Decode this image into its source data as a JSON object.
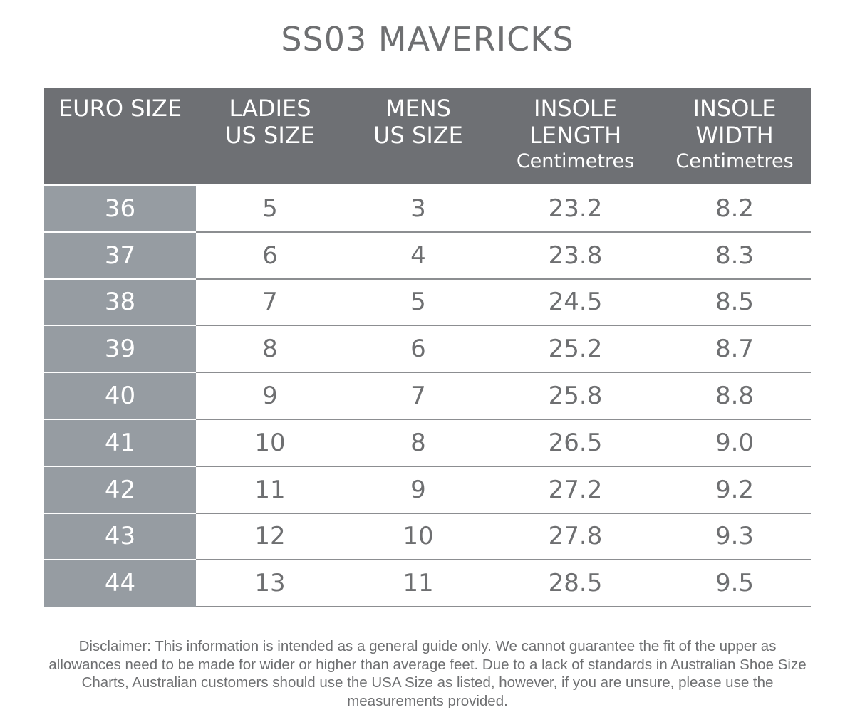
{
  "title": "SS03 MAVERICKS",
  "table": {
    "headers": [
      {
        "line1": "EURO SIZE",
        "line2": "",
        "sub": ""
      },
      {
        "line1": "LADIES",
        "line2": "US SIZE",
        "sub": ""
      },
      {
        "line1": "MENS",
        "line2": "US SIZE",
        "sub": ""
      },
      {
        "line1": "INSOLE",
        "line2": "LENGTH",
        "sub": "Centimetres"
      },
      {
        "line1": "INSOLE",
        "line2": "WIDTH",
        "sub": "Centimetres"
      }
    ],
    "rows": [
      [
        "36",
        "5",
        "3",
        "23.2",
        "8.2"
      ],
      [
        "37",
        "6",
        "4",
        "23.8",
        "8.3"
      ],
      [
        "38",
        "7",
        "5",
        "24.5",
        "8.5"
      ],
      [
        "39",
        "8",
        "6",
        "25.2",
        "8.7"
      ],
      [
        "40",
        "9",
        "7",
        "25.8",
        "8.8"
      ],
      [
        "41",
        "10",
        "8",
        "26.5",
        "9.0"
      ],
      [
        "42",
        "11",
        "9",
        "27.2",
        "9.2"
      ],
      [
        "43",
        "12",
        "10",
        "27.8",
        "9.3"
      ],
      [
        "44",
        "13",
        "11",
        "28.5",
        "9.5"
      ]
    ]
  },
  "disclaimer": "Disclaimer: This information is intended as a general guide only. We cannot guarantee the fit of the upper as allowances need to be made for wider or higher than average feet. Due to a lack of standards in Australian Shoe Size Charts, Australian customers should use the USA Size as listed, however, if you are unsure, please use the measurements provided.",
  "colors": {
    "header_bg": "#6e7074",
    "euro_column_bg": "#969ca2",
    "text": "#6e6f71",
    "rule": "#8c8e91"
  }
}
